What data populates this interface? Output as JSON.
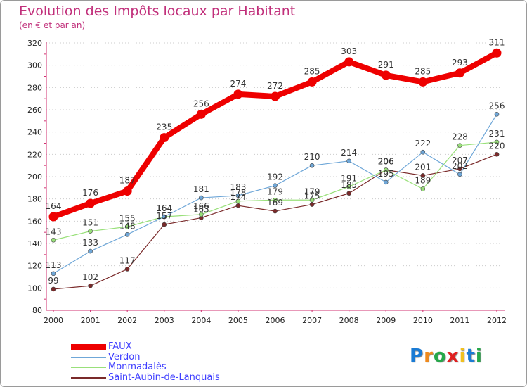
{
  "header": {
    "title": "Evolution des Impôts locaux par Habitant",
    "subtitle": "(en € et par an)"
  },
  "logo": {
    "text": "Proxiti",
    "colors": [
      "#1a7bd4",
      "#f08a1c",
      "#26a84a",
      "#e02020",
      "#f0c020",
      "#1a7bd4",
      "#26a84a"
    ]
  },
  "chart_data": {
    "type": "line",
    "title": "Evolution des Impôts locaux par Habitant",
    "subtitle": "(en € et par an)",
    "x": [
      "2000",
      "2001",
      "2002",
      "2003",
      "2004",
      "2005",
      "2006",
      "2007",
      "2008",
      "2009",
      "2010",
      "2011",
      "2012"
    ],
    "ylim": [
      80,
      320
    ],
    "yticks": [
      80,
      100,
      120,
      140,
      160,
      180,
      200,
      220,
      240,
      260,
      280,
      300,
      320
    ],
    "grid": "horizontal dotted",
    "legend": "bottom-left",
    "series": [
      {
        "name": "FAUX",
        "color": "#ee0000",
        "values": [
          164,
          176,
          187,
          235,
          256,
          274,
          272,
          285,
          303,
          291,
          285,
          293,
          311
        ]
      },
      {
        "name": "Verdon",
        "color": "#6fa7d8",
        "values": [
          113,
          133,
          148,
          164,
          181,
          183,
          192,
          210,
          214,
          195,
          222,
          202,
          256
        ]
      },
      {
        "name": "Monmadalès",
        "color": "#99e07a",
        "values": [
          143,
          151,
          155,
          164,
          166,
          178,
          179,
          179,
          191,
          206,
          189,
          228,
          231
        ]
      },
      {
        "name": "Saint-Aubin-de-Lanquais",
        "color": "#7a2a2a",
        "values": [
          99,
          102,
          117,
          157,
          163,
          174,
          169,
          175,
          185,
          206,
          201,
          207,
          220
        ]
      }
    ]
  }
}
